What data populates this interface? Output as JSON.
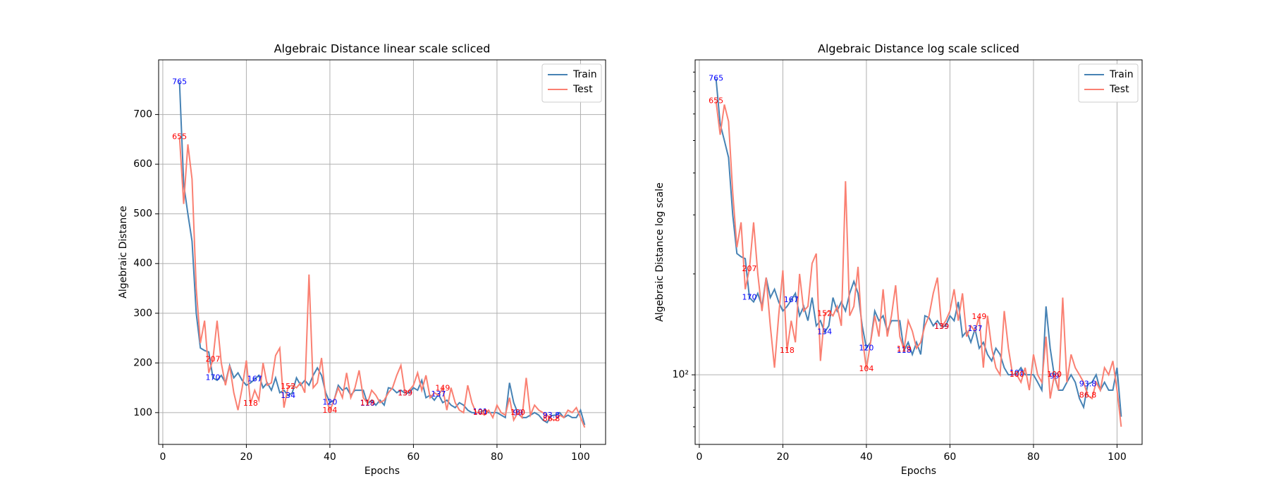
{
  "chart_data": [
    {
      "type": "line",
      "title": "Algebraic Distance linear scale scliced",
      "xlabel": "Epochs",
      "ylabel": "Algebraic Distance",
      "x": [
        4,
        5,
        6,
        7,
        8,
        9,
        10,
        11,
        12,
        13,
        14,
        15,
        16,
        17,
        18,
        19,
        20,
        21,
        22,
        23,
        24,
        25,
        26,
        27,
        28,
        29,
        30,
        31,
        32,
        33,
        34,
        35,
        36,
        37,
        38,
        39,
        40,
        41,
        42,
        43,
        44,
        45,
        46,
        47,
        48,
        49,
        50,
        51,
        52,
        53,
        54,
        55,
        56,
        57,
        58,
        59,
        60,
        61,
        62,
        63,
        64,
        65,
        66,
        67,
        68,
        69,
        70,
        71,
        72,
        73,
        74,
        75,
        76,
        77,
        78,
        79,
        80,
        81,
        82,
        83,
        84,
        85,
        86,
        87,
        88,
        89,
        90,
        91,
        92,
        93,
        94,
        95,
        96,
        97,
        98,
        99,
        100,
        101
      ],
      "series": [
        {
          "name": "Train",
          "color": "#4682b4",
          "label_color": "#0000ff",
          "labeled_x": [
            4,
            12,
            22,
            30,
            40,
            49,
            58,
            66,
            76,
            85,
            93
          ],
          "values": [
            765,
            560,
            500,
            445,
            300,
            230,
            225,
            222,
            170,
            165,
            175,
            160,
            195,
            170,
            180,
            165,
            155,
            160,
            167,
            175,
            150,
            160,
            145,
            170,
            140,
            145,
            134,
            140,
            170,
            155,
            165,
            155,
            175,
            190,
            175,
            140,
            120,
            125,
            155,
            145,
            150,
            135,
            145,
            145,
            145,
            118,
            125,
            115,
            125,
            115,
            150,
            148,
            140,
            145,
            139,
            140,
            150,
            145,
            165,
            130,
            135,
            125,
            137,
            120,
            125,
            115,
            110,
            120,
            115,
            105,
            100,
            100,
            101,
            105,
            100,
            100,
            100,
            95,
            90,
            160,
            120,
            99,
            90,
            90,
            95,
            100,
            95,
            85,
            80,
            93.8,
            95,
            100,
            90,
            95,
            90,
            90,
            105,
            75
          ]
        },
        {
          "name": "Test",
          "color": "#fa8072",
          "label_color": "#ff0000",
          "labeled_x": [
            4,
            12,
            21,
            30,
            40,
            49,
            58,
            67,
            76,
            85,
            93
          ],
          "values": [
            655,
            520,
            640,
            570,
            350,
            240,
            285,
            180,
            207,
            285,
            200,
            155,
            195,
            140,
            105,
            150,
            205,
            118,
            145,
            125,
            200,
            155,
            160,
            215,
            230,
            110,
            152,
            155,
            150,
            160,
            140,
            378,
            150,
            160,
            210,
            130,
            104,
            125,
            150,
            130,
            180,
            130,
            150,
            185,
            130,
            119,
            145,
            135,
            120,
            125,
            140,
            150,
            175,
            195,
            139,
            145,
            155,
            180,
            145,
            175,
            130,
            140,
            135,
            149,
            105,
            150,
            120,
            105,
            100,
            155,
            120,
            100,
            100,
            95,
            105,
            90,
            115,
            100,
            95,
            130,
            85,
            100,
            90,
            170,
            95,
            115,
            105,
            100,
            95,
            86.8,
            85,
            95,
            90,
            105,
            100,
            110,
            90,
            70
          ]
        }
      ],
      "xlim": [
        -1,
        106
      ],
      "xticks": [
        0,
        20,
        40,
        60,
        80,
        100
      ],
      "ylim": [
        36,
        810
      ],
      "yticks": [
        100,
        200,
        300,
        400,
        500,
        600,
        700
      ],
      "grid": true,
      "legend": "upper right"
    },
    {
      "type": "line",
      "title": "Algebraic Distance log scale scliced",
      "xlabel": "Epochs",
      "ylabel": "Algebraic Distance log scale",
      "x": [
        4,
        5,
        6,
        7,
        8,
        9,
        10,
        11,
        12,
        13,
        14,
        15,
        16,
        17,
        18,
        19,
        20,
        21,
        22,
        23,
        24,
        25,
        26,
        27,
        28,
        29,
        30,
        31,
        32,
        33,
        34,
        35,
        36,
        37,
        38,
        39,
        40,
        41,
        42,
        43,
        44,
        45,
        46,
        47,
        48,
        49,
        50,
        51,
        52,
        53,
        54,
        55,
        56,
        57,
        58,
        59,
        60,
        61,
        62,
        63,
        64,
        65,
        66,
        67,
        68,
        69,
        70,
        71,
        72,
        73,
        74,
        75,
        76,
        77,
        78,
        79,
        80,
        81,
        82,
        83,
        84,
        85,
        86,
        87,
        88,
        89,
        90,
        91,
        92,
        93,
        94,
        95,
        96,
        97,
        98,
        99,
        100,
        101
      ],
      "series": [
        {
          "name": "Train",
          "color": "#4682b4",
          "label_color": "#0000ff",
          "labeled_x": [
            4,
            12,
            22,
            30,
            40,
            49,
            58,
            66,
            76,
            85,
            93
          ],
          "values": [
            765,
            560,
            500,
            445,
            300,
            230,
            225,
            222,
            170,
            165,
            175,
            160,
            195,
            170,
            180,
            165,
            155,
            160,
            167,
            175,
            150,
            160,
            145,
            170,
            140,
            145,
            134,
            140,
            170,
            155,
            165,
            155,
            175,
            190,
            175,
            140,
            120,
            125,
            155,
            145,
            150,
            135,
            145,
            145,
            145,
            118,
            125,
            115,
            125,
            115,
            150,
            148,
            140,
            145,
            139,
            140,
            150,
            145,
            165,
            130,
            135,
            125,
            137,
            120,
            125,
            115,
            110,
            120,
            115,
            105,
            100,
            100,
            101,
            105,
            100,
            100,
            100,
            95,
            90,
            160,
            120,
            99,
            90,
            90,
            95,
            100,
            95,
            85,
            80,
            93.8,
            95,
            100,
            90,
            95,
            90,
            90,
            105,
            75
          ]
        },
        {
          "name": "Test",
          "color": "#fa8072",
          "label_color": "#ff0000",
          "labeled_x": [
            4,
            12,
            21,
            30,
            40,
            49,
            58,
            67,
            76,
            85,
            93
          ],
          "values": [
            655,
            520,
            640,
            570,
            350,
            240,
            285,
            180,
            207,
            285,
            200,
            155,
            195,
            140,
            105,
            150,
            205,
            118,
            145,
            125,
            200,
            155,
            160,
            215,
            230,
            110,
            152,
            155,
            150,
            160,
            140,
            378,
            150,
            160,
            210,
            130,
            104,
            125,
            150,
            130,
            180,
            130,
            150,
            185,
            130,
            119,
            145,
            135,
            120,
            125,
            140,
            150,
            175,
            195,
            139,
            145,
            155,
            180,
            145,
            175,
            130,
            140,
            135,
            149,
            105,
            150,
            120,
            105,
            100,
            155,
            120,
            100,
            100,
            95,
            105,
            90,
            115,
            100,
            95,
            130,
            85,
            100,
            90,
            170,
            95,
            115,
            105,
            100,
            95,
            86.8,
            85,
            95,
            90,
            105,
            100,
            110,
            90,
            70
          ]
        }
      ],
      "xlim": [
        -1,
        106
      ],
      "xticks": [
        0,
        20,
        40,
        60,
        80,
        100
      ],
      "log_y": true,
      "ylim": [
        62,
        870
      ],
      "yticks": [
        {
          "value": 100,
          "label": "10²"
        }
      ],
      "yminorticks": [
        70,
        80,
        90,
        200,
        300,
        400,
        500,
        600,
        700,
        800
      ],
      "grid": true,
      "legend": "upper right"
    }
  ]
}
